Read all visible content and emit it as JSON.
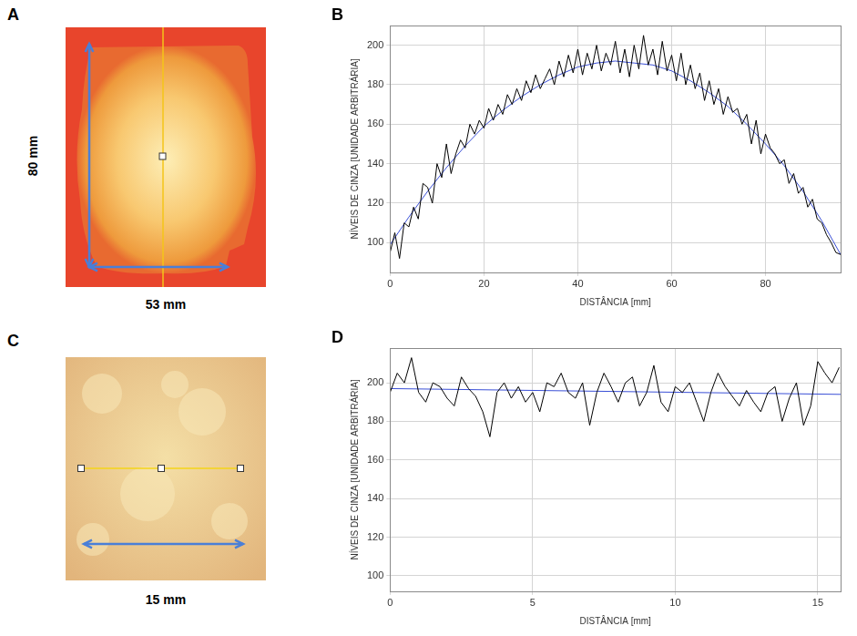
{
  "images": [
    {
      "panel": "A",
      "height_label": "80 mm",
      "width_label": "53 mm"
    },
    {
      "panel": "C",
      "width_label": "15 mm"
    }
  ],
  "chart_data": [
    {
      "type": "line",
      "panel": "B",
      "x_label": "DISTÂNCIA [mm]",
      "y_label": "NÍVEIS DE CINZA [UNIDADE ARBITRÁRIA]",
      "xlim": [
        0,
        96
      ],
      "xticks": [
        0,
        20,
        40,
        60,
        80
      ],
      "ylim": [
        85,
        210
      ],
      "yticks": [
        100,
        120,
        140,
        160,
        180,
        200
      ],
      "grid": true,
      "series": [
        {
          "color": "#000000",
          "x": [
            0,
            1,
            2,
            3,
            4,
            5,
            6,
            7,
            8,
            9,
            10,
            11,
            12,
            13,
            14,
            15,
            16,
            17,
            18,
            19,
            20,
            21,
            22,
            23,
            24,
            25,
            26,
            27,
            28,
            29,
            30,
            31,
            32,
            33,
            34,
            35,
            36,
            37,
            38,
            39,
            40,
            41,
            42,
            43,
            44,
            45,
            46,
            47,
            48,
            49,
            50,
            51,
            52,
            53,
            54,
            55,
            56,
            57,
            58,
            59,
            60,
            61,
            62,
            63,
            64,
            65,
            66,
            67,
            68,
            69,
            70,
            71,
            72,
            73,
            74,
            75,
            76,
            77,
            78,
            79,
            80,
            81,
            82,
            83,
            84,
            85,
            86,
            87,
            88,
            89,
            90,
            91,
            92,
            93,
            94,
            95,
            96
          ],
          "values": [
            95,
            105,
            92,
            110,
            108,
            118,
            112,
            130,
            128,
            120,
            140,
            133,
            150,
            135,
            145,
            152,
            148,
            160,
            155,
            162,
            158,
            168,
            162,
            170,
            165,
            175,
            170,
            178,
            172,
            182,
            176,
            185,
            178,
            183,
            188,
            180,
            192,
            184,
            195,
            186,
            198,
            185,
            196,
            188,
            200,
            187,
            196,
            190,
            202,
            186,
            198,
            184,
            200,
            188,
            205,
            190,
            198,
            185,
            202,
            187,
            195,
            182,
            196,
            180,
            190,
            178,
            186,
            172,
            182,
            170,
            178,
            165,
            174,
            166,
            168,
            160,
            165,
            150,
            162,
            145,
            155,
            148,
            145,
            140,
            142,
            130,
            135,
            125,
            128,
            118,
            122,
            112,
            110,
            104,
            100,
            95,
            94
          ]
        },
        {
          "color": "#3a4fd6",
          "x": [
            0,
            4,
            8,
            12,
            16,
            20,
            24,
            28,
            32,
            36,
            40,
            44,
            48,
            52,
            56,
            60,
            64,
            68,
            72,
            76,
            80,
            84,
            88,
            92,
            96
          ],
          "values": [
            99,
            113,
            126,
            138,
            149,
            159,
            167,
            174,
            180,
            185,
            189,
            191,
            192,
            191,
            190,
            187,
            182,
            176,
            169,
            160,
            150,
            139,
            126,
            111,
            94
          ]
        }
      ]
    },
    {
      "type": "line",
      "panel": "D",
      "x_label": "DISTÂNCIA [mm]",
      "y_label": "NÍVEIS DE CINZA [UNIDADE ARBITRÁRIA]",
      "xlim": [
        0,
        15.8
      ],
      "xticks": [
        0,
        5,
        10,
        15
      ],
      "ylim": [
        92,
        218
      ],
      "yticks": [
        100,
        120,
        140,
        160,
        180,
        200
      ],
      "grid": true,
      "series": [
        {
          "color": "#000000",
          "x": [
            0,
            0.25,
            0.5,
            0.75,
            1,
            1.25,
            1.5,
            1.75,
            2,
            2.25,
            2.5,
            2.75,
            3,
            3.25,
            3.5,
            3.75,
            4,
            4.25,
            4.5,
            4.75,
            5,
            5.25,
            5.5,
            5.75,
            6,
            6.25,
            6.5,
            6.75,
            7,
            7.25,
            7.5,
            7.75,
            8,
            8.25,
            8.5,
            8.75,
            9,
            9.25,
            9.5,
            9.75,
            10,
            10.25,
            10.5,
            10.75,
            11,
            11.25,
            11.5,
            11.75,
            12,
            12.25,
            12.5,
            12.75,
            13,
            13.25,
            13.5,
            13.75,
            14,
            14.25,
            14.5,
            14.75,
            15,
            15.25,
            15.5,
            15.75
          ],
          "values": [
            195,
            205,
            200,
            213,
            195,
            190,
            200,
            198,
            192,
            188,
            203,
            197,
            193,
            185,
            172,
            195,
            200,
            192,
            198,
            190,
            195,
            185,
            200,
            198,
            205,
            195,
            192,
            200,
            178,
            195,
            205,
            198,
            190,
            200,
            203,
            188,
            195,
            209,
            190,
            185,
            198,
            195,
            200,
            190,
            180,
            195,
            205,
            198,
            193,
            188,
            196,
            190,
            185,
            195,
            198,
            180,
            192,
            200,
            178,
            188,
            211,
            205,
            200,
            208
          ]
        },
        {
          "color": "#3a4fd6",
          "x": [
            0,
            15.8
          ],
          "values": [
            197,
            194
          ]
        }
      ]
    }
  ]
}
